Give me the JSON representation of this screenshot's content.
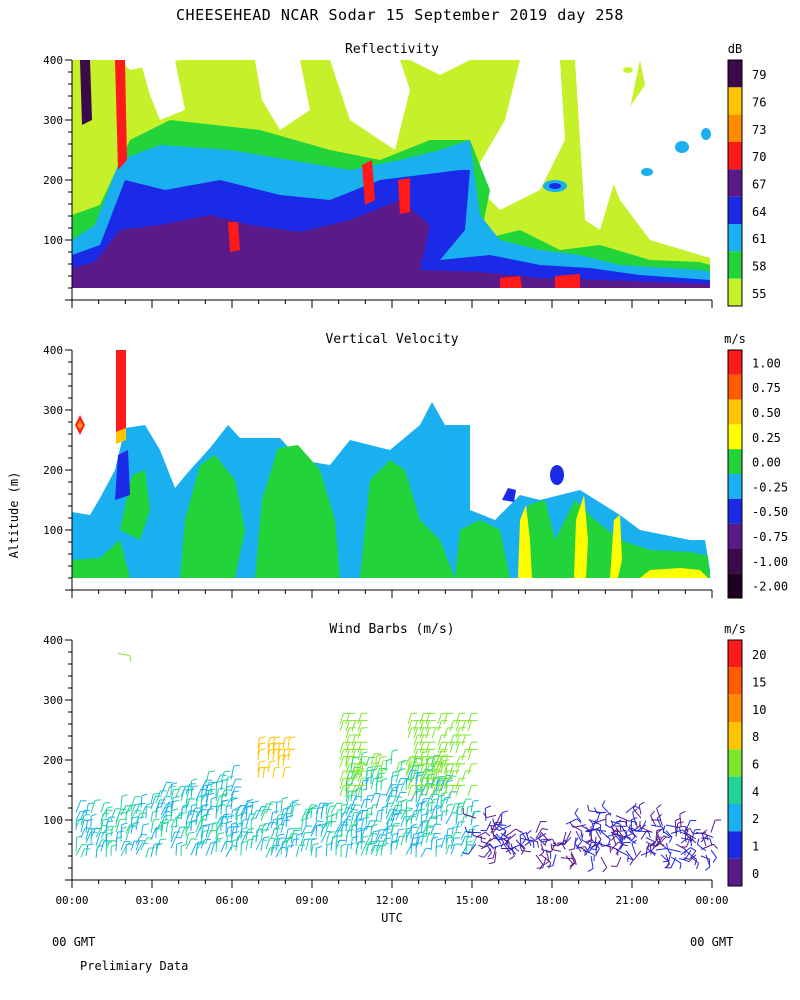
{
  "header": {
    "title": "CHEESEHEAD  NCAR Sodar  15 September 2019  day 258"
  },
  "footer": {
    "left_gmt": "00 GMT",
    "right_gmt": "00 GMT",
    "note": "Prelimiary Data",
    "xaxis_label": "UTC"
  },
  "shared": {
    "yaxis_label": "Altitude (m)",
    "y_ticks": [
      "400",
      "300",
      "200",
      "100"
    ],
    "x_ticks": [
      "00:00",
      "03:00",
      "06:00",
      "09:00",
      "12:00",
      "15:00",
      "18:00",
      "21:00",
      "00:00"
    ]
  },
  "colors": {
    "dark_purple": "#3a0a4a",
    "purple": "#5a1a8a",
    "blue": "#1a2ae6",
    "cyan": "#1ab0f0",
    "green": "#22d43a",
    "yellowgreen": "#c6f02a",
    "yellow": "#ffff00",
    "gold": "#ffc400",
    "orange": "#ff8c00",
    "red": "#ff1a1a"
  },
  "chart_data": [
    {
      "type": "heatmap",
      "title": "Reflectivity",
      "units": "dB",
      "ylabel": "",
      "xlabel": "",
      "ylim": [
        0,
        400
      ],
      "x_ticks": [
        "00:00",
        "03:00",
        "06:00",
        "09:00",
        "12:00",
        "15:00",
        "18:00",
        "21:00",
        "00:00"
      ],
      "legend_levels": [
        "79",
        "76",
        "73",
        "70",
        "67",
        "64",
        "61",
        "58",
        "55"
      ],
      "legend_colors": [
        "#3a0a4a",
        "#ffc400",
        "#ff8c00",
        "#ff1a1a",
        "#5a1a8a",
        "#1a2ae6",
        "#1ab0f0",
        "#22d43a",
        "#c6f02a"
      ]
    },
    {
      "type": "heatmap",
      "title": "Vertical Velocity",
      "units": "m/s",
      "ylabel": "Altitude (m)",
      "xlabel": "",
      "ylim": [
        0,
        400
      ],
      "x_ticks": [
        "00:00",
        "03:00",
        "06:00",
        "09:00",
        "12:00",
        "15:00",
        "18:00",
        "21:00",
        "00:00"
      ],
      "legend_levels": [
        "1.00",
        "0.75",
        "0.50",
        "0.25",
        "0.00",
        "-0.25",
        "-0.50",
        "-0.75",
        "-1.00",
        "-2.00"
      ],
      "legend_colors": [
        "#ff1a1a",
        "#ff5a00",
        "#ffc400",
        "#ffff00",
        "#22d43a",
        "#1ab0f0",
        "#1a2ae6",
        "#5a1a8a",
        "#3a0a4a",
        "#200020"
      ]
    },
    {
      "type": "scatter",
      "title": "Wind Barbs (m/s)",
      "units": "m/s",
      "ylabel": "",
      "xlabel": "UTC",
      "ylim": [
        0,
        400
      ],
      "x_ticks": [
        "00:00",
        "03:00",
        "06:00",
        "09:00",
        "12:00",
        "15:00",
        "18:00",
        "21:00",
        "00:00"
      ],
      "legend_levels": [
        "20",
        "15",
        "10",
        "8",
        "6",
        "4",
        "2",
        "1",
        "0"
      ],
      "legend_colors": [
        "#ff1a1a",
        "#ff5a00",
        "#ff8c00",
        "#ffc400",
        "#7ee62a",
        "#22d49a",
        "#1ab0f0",
        "#1a2ae6",
        "#5a1a8a"
      ]
    }
  ]
}
